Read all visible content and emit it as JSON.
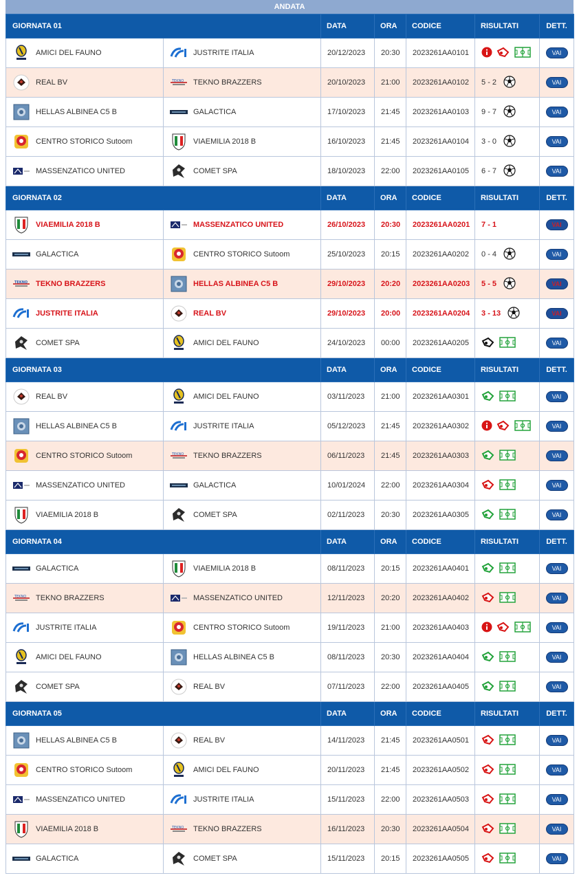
{
  "header": {
    "title": "ANDATA"
  },
  "colors": {
    "header_bg": "#0f5aa8",
    "highlight_row": "#fde9df",
    "red_text": "#d7141a",
    "button": "#1f5aa6"
  },
  "columns": {
    "data": "DATA",
    "ora": "ORA",
    "codice": "CODICE",
    "risultati": "RISULTATI",
    "dett": "DETT."
  },
  "vai_label": "VAI",
  "giornate": [
    {
      "title": "GIORNATA 01",
      "matches": [
        {
          "home": "AMICI DEL FAUNO",
          "home_logo": "fauno",
          "away": "JUSTRITE ITALIA",
          "away_logo": "justrite",
          "data": "20/12/2023",
          "ora": "20:30",
          "codice": "2023261AA0101",
          "score": "",
          "icons": [
            "info-icon",
            "whistle-red-icon",
            "field-icon"
          ],
          "alt": false,
          "red": false
        },
        {
          "home": "REAL BV",
          "home_logo": "realbv",
          "away": "TEKNO BRAZZERS",
          "away_logo": "tekno",
          "data": "20/10/2023",
          "ora": "21:00",
          "codice": "2023261AA0102",
          "score": "5 - 2",
          "icons": [
            "ball-icon"
          ],
          "alt": true,
          "red": false
        },
        {
          "home": "HELLAS ALBINEA C5 B",
          "home_logo": "hellas",
          "away": "GALACTICA",
          "away_logo": "galactica",
          "data": "17/10/2023",
          "ora": "21:45",
          "codice": "2023261AA0103",
          "score": "9 - 7",
          "icons": [
            "ball-icon"
          ],
          "alt": false,
          "red": false
        },
        {
          "home": "CENTRO STORICO Sutoom",
          "home_logo": "centro",
          "away": "VIAEMILIA 2018 B",
          "away_logo": "viaemilia",
          "data": "16/10/2023",
          "ora": "21:45",
          "codice": "2023261AA0104",
          "score": "3 - 0",
          "icons": [
            "ball-icon"
          ],
          "alt": false,
          "red": false
        },
        {
          "home": "MASSENZATICO UNITED",
          "home_logo": "massenzatico",
          "away": "COMET SPA",
          "away_logo": "comet",
          "data": "18/10/2023",
          "ora": "22:00",
          "codice": "2023261AA0105",
          "score": "6 - 7",
          "icons": [
            "ball-icon"
          ],
          "alt": false,
          "red": false
        }
      ]
    },
    {
      "title": "GIORNATA 02",
      "matches": [
        {
          "home": "VIAEMILIA 2018 B",
          "home_logo": "viaemilia",
          "away": "MASSENZATICO UNITED",
          "away_logo": "massenzatico",
          "data": "26/10/2023",
          "ora": "20:30",
          "codice": "2023261AA0201",
          "score": "7 - 1",
          "icons": [],
          "alt": false,
          "red": true
        },
        {
          "home": "GALACTICA",
          "home_logo": "galactica",
          "away": "CENTRO STORICO Sutoom",
          "away_logo": "centro",
          "data": "25/10/2023",
          "ora": "20:15",
          "codice": "2023261AA0202",
          "score": "0 - 4",
          "icons": [
            "ball-icon"
          ],
          "alt": false,
          "red": false
        },
        {
          "home": "TEKNO BRAZZERS",
          "home_logo": "tekno",
          "away": "HELLAS ALBINEA C5 B",
          "away_logo": "hellas",
          "data": "29/10/2023",
          "ora": "20:20",
          "codice": "2023261AA0203",
          "score": "5 - 5",
          "icons": [
            "ball-icon"
          ],
          "alt": true,
          "red": true
        },
        {
          "home": "JUSTRITE ITALIA",
          "home_logo": "justrite",
          "away": "REAL BV",
          "away_logo": "realbv",
          "data": "29/10/2023",
          "ora": "20:00",
          "codice": "2023261AA0204",
          "score": "3 - 13",
          "icons": [
            "ball-icon"
          ],
          "alt": false,
          "red": true
        },
        {
          "home": "COMET SPA",
          "home_logo": "comet",
          "away": "AMICI DEL FAUNO",
          "away_logo": "fauno",
          "data": "24/10/2023",
          "ora": "00:00",
          "codice": "2023261AA0205",
          "score": "",
          "icons": [
            "whistle-black-icon",
            "field-icon"
          ],
          "alt": false,
          "red": false
        }
      ]
    },
    {
      "title": "GIORNATA 03",
      "matches": [
        {
          "home": "REAL BV",
          "home_logo": "realbv",
          "away": "AMICI DEL FAUNO",
          "away_logo": "fauno",
          "data": "03/11/2023",
          "ora": "21:00",
          "codice": "2023261AA0301",
          "score": "",
          "icons": [
            "whistle-green-icon",
            "field-icon"
          ],
          "alt": false,
          "red": false
        },
        {
          "home": "HELLAS ALBINEA C5 B",
          "home_logo": "hellas",
          "away": "JUSTRITE ITALIA",
          "away_logo": "justrite",
          "data": "05/12/2023",
          "ora": "21:45",
          "codice": "2023261AA0302",
          "score": "",
          "icons": [
            "info-icon",
            "whistle-red-icon",
            "field-icon"
          ],
          "alt": false,
          "red": false
        },
        {
          "home": "CENTRO STORICO Sutoom",
          "home_logo": "centro",
          "away": "TEKNO BRAZZERS",
          "away_logo": "tekno",
          "data": "06/11/2023",
          "ora": "21:45",
          "codice": "2023261AA0303",
          "score": "",
          "icons": [
            "whistle-green-icon",
            "field-icon"
          ],
          "alt": true,
          "red": false
        },
        {
          "home": "MASSENZATICO UNITED",
          "home_logo": "massenzatico",
          "away": "GALACTICA",
          "away_logo": "galactica",
          "data": "10/01/2024",
          "ora": "22:00",
          "codice": "2023261AA0304",
          "score": "",
          "icons": [
            "whistle-red-icon",
            "field-icon"
          ],
          "alt": false,
          "red": false
        },
        {
          "home": "VIAEMILIA 2018 B",
          "home_logo": "viaemilia",
          "away": "COMET SPA",
          "away_logo": "comet",
          "data": "02/11/2023",
          "ora": "20:30",
          "codice": "2023261AA0305",
          "score": "",
          "icons": [
            "whistle-green-icon",
            "field-icon"
          ],
          "alt": false,
          "red": false
        }
      ]
    },
    {
      "title": "GIORNATA 04",
      "matches": [
        {
          "home": "GALACTICA",
          "home_logo": "galactica",
          "away": "VIAEMILIA 2018 B",
          "away_logo": "viaemilia",
          "data": "08/11/2023",
          "ora": "20:15",
          "codice": "2023261AA0401",
          "score": "",
          "icons": [
            "whistle-green-icon",
            "field-icon"
          ],
          "alt": false,
          "red": false
        },
        {
          "home": "TEKNO BRAZZERS",
          "home_logo": "tekno",
          "away": "MASSENZATICO UNITED",
          "away_logo": "massenzatico",
          "data": "12/11/2023",
          "ora": "20:20",
          "codice": "2023261AA0402",
          "score": "",
          "icons": [
            "whistle-red-icon",
            "field-icon"
          ],
          "alt": true,
          "red": false
        },
        {
          "home": "JUSTRITE ITALIA",
          "home_logo": "justrite",
          "away": "CENTRO STORICO Sutoom",
          "away_logo": "centro",
          "data": "19/11/2023",
          "ora": "21:00",
          "codice": "2023261AA0403",
          "score": "",
          "icons": [
            "info-icon",
            "whistle-red-icon",
            "field-icon"
          ],
          "alt": false,
          "red": false
        },
        {
          "home": "AMICI DEL FAUNO",
          "home_logo": "fauno",
          "away": "HELLAS ALBINEA C5 B",
          "away_logo": "hellas",
          "data": "08/11/2023",
          "ora": "20:30",
          "codice": "2023261AA0404",
          "score": "",
          "icons": [
            "whistle-green-icon",
            "field-icon"
          ],
          "alt": false,
          "red": false
        },
        {
          "home": "COMET SPA",
          "home_logo": "comet",
          "away": "REAL BV",
          "away_logo": "realbv",
          "data": "07/11/2023",
          "ora": "22:00",
          "codice": "2023261AA0405",
          "score": "",
          "icons": [
            "whistle-green-icon",
            "field-icon"
          ],
          "alt": false,
          "red": false
        }
      ]
    },
    {
      "title": "GIORNATA 05",
      "matches": [
        {
          "home": "HELLAS ALBINEA C5 B",
          "home_logo": "hellas",
          "away": "REAL BV",
          "away_logo": "realbv",
          "data": "14/11/2023",
          "ora": "21:45",
          "codice": "2023261AA0501",
          "score": "",
          "icons": [
            "whistle-red-icon",
            "field-icon"
          ],
          "alt": false,
          "red": false
        },
        {
          "home": "CENTRO STORICO Sutoom",
          "home_logo": "centro",
          "away": "AMICI DEL FAUNO",
          "away_logo": "fauno",
          "data": "20/11/2023",
          "ora": "21:45",
          "codice": "2023261AA0502",
          "score": "",
          "icons": [
            "whistle-red-icon",
            "field-icon"
          ],
          "alt": false,
          "red": false
        },
        {
          "home": "MASSENZATICO UNITED",
          "home_logo": "massenzatico",
          "away": "JUSTRITE ITALIA",
          "away_logo": "justrite",
          "data": "15/11/2023",
          "ora": "22:00",
          "codice": "2023261AA0503",
          "score": "",
          "icons": [
            "whistle-red-icon",
            "field-icon"
          ],
          "alt": false,
          "red": false
        },
        {
          "home": "VIAEMILIA 2018 B",
          "home_logo": "viaemilia",
          "away": "TEKNO BRAZZERS",
          "away_logo": "tekno",
          "data": "16/11/2023",
          "ora": "20:30",
          "codice": "2023261AA0504",
          "score": "",
          "icons": [
            "whistle-red-icon",
            "field-icon"
          ],
          "alt": true,
          "red": false
        },
        {
          "home": "GALACTICA",
          "home_logo": "galactica",
          "away": "COMET SPA",
          "away_logo": "comet",
          "data": "15/11/2023",
          "ora": "20:15",
          "codice": "2023261AA0505",
          "score": "",
          "icons": [
            "whistle-red-icon",
            "field-icon"
          ],
          "alt": false,
          "red": false
        }
      ]
    }
  ]
}
